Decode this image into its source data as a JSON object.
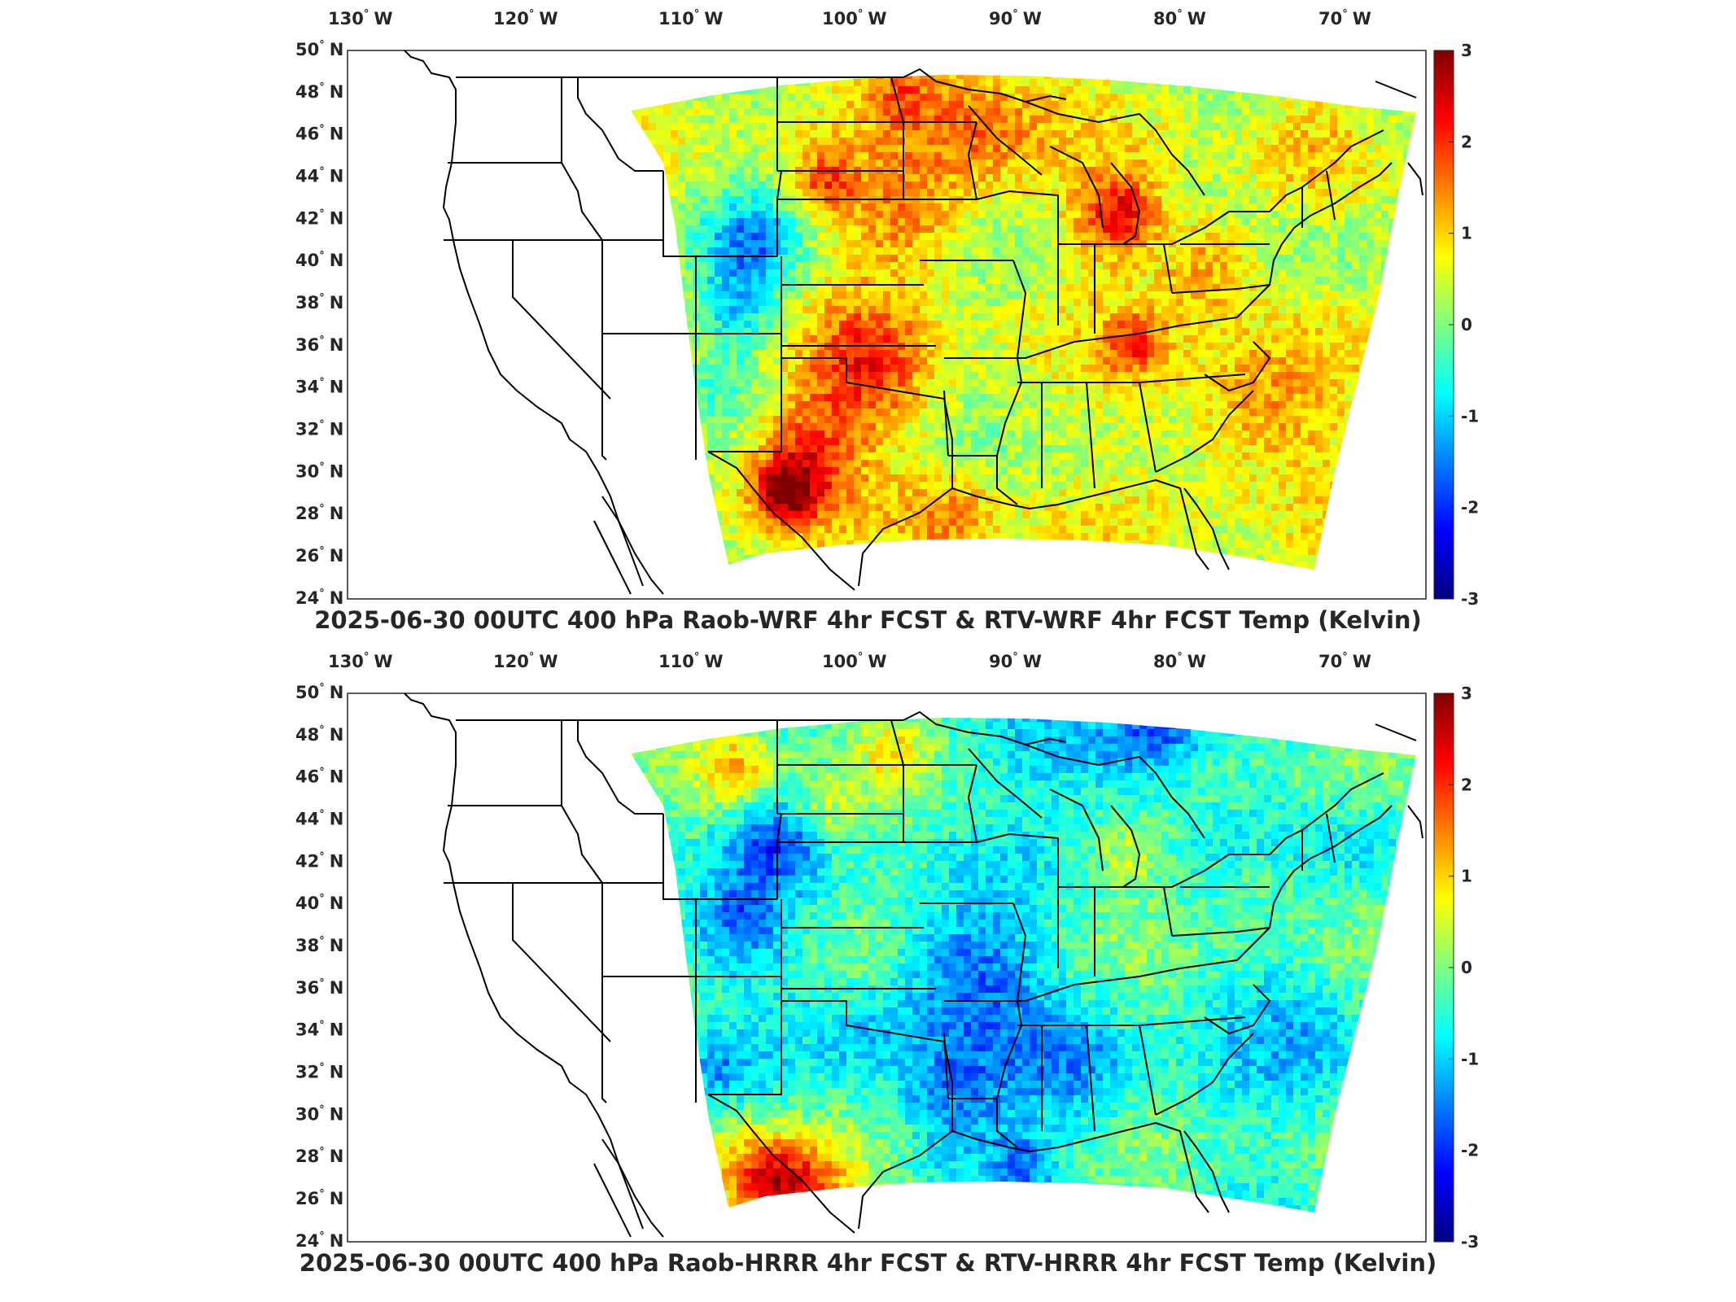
{
  "colors": {
    "colormap": [
      "#00007f",
      "#0000ff",
      "#007fff",
      "#00ffff",
      "#7fff7f",
      "#ffff00",
      "#ff7f00",
      "#ff0000",
      "#7f0000"
    ],
    "state_lines": "#000000",
    "frame": "#262626",
    "background": "#ffffff"
  },
  "lon_ticks": [
    {
      "deg": "130",
      "dir": "W"
    },
    {
      "deg": "120",
      "dir": "W"
    },
    {
      "deg": "110",
      "dir": "W"
    },
    {
      "deg": "100",
      "dir": "W"
    },
    {
      "deg": "90",
      "dir": "W"
    },
    {
      "deg": "80",
      "dir": "W"
    },
    {
      "deg": "70",
      "dir": "W"
    }
  ],
  "lat_ticks": [
    {
      "deg": "50",
      "dir": "N"
    },
    {
      "deg": "48",
      "dir": "N"
    },
    {
      "deg": "46",
      "dir": "N"
    },
    {
      "deg": "44",
      "dir": "N"
    },
    {
      "deg": "42",
      "dir": "N"
    },
    {
      "deg": "40",
      "dir": "N"
    },
    {
      "deg": "38",
      "dir": "N"
    },
    {
      "deg": "36",
      "dir": "N"
    },
    {
      "deg": "34",
      "dir": "N"
    },
    {
      "deg": "32",
      "dir": "N"
    },
    {
      "deg": "30",
      "dir": "N"
    },
    {
      "deg": "28",
      "dir": "N"
    },
    {
      "deg": "26",
      "dir": "N"
    },
    {
      "deg": "24",
      "dir": "N"
    }
  ],
  "colorbar": {
    "min": -3,
    "max": 3,
    "ticks": [
      "3",
      "2",
      "1",
      "0",
      "-1",
      "-2",
      "-3"
    ],
    "unit": "Kelvin"
  },
  "panels": [
    {
      "id": "top",
      "title": "2025-06-30 00UTC 400 hPa Raob-WRF 4hr FCST & RTV-WRF 4hr FCST Temp (Kelvin)",
      "field_bias": 0.45
    },
    {
      "id": "bottom",
      "title": "2025-06-30 00UTC 400 hPa Raob-HRRR 4hr FCST & RTV-HRRR 4hr FCST Temp (Kelvin)",
      "field_bias": -0.35
    }
  ]
}
